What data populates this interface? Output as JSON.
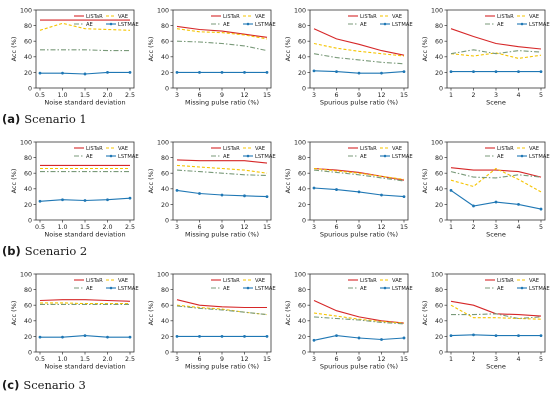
{
  "captions": [
    {
      "letter": "(a)",
      "text": "Scenario 1"
    },
    {
      "letter": "(b)",
      "text": "Scenario 2"
    },
    {
      "letter": "(c)",
      "text": "Scenario 3"
    }
  ],
  "legend_labels": [
    "LiSTaR",
    "VAE",
    "AE",
    "LSTMAE"
  ],
  "series_colors": {
    "LiSTaR": "#d62728",
    "VAE": "#f5c400",
    "AE": "#7a9a7a",
    "LSTMAE": "#1f77b4"
  },
  "chart_data": [
    {
      "type": "line",
      "scenario": "Scenario 1",
      "xlabel": "Noise standard deviation",
      "ylabel": "Acc (%)",
      "x": [
        0.5,
        1.0,
        1.5,
        2.0,
        2.5
      ],
      "xticks": [
        "0.5",
        "1.0",
        "1.5",
        "2.0",
        "2.5"
      ],
      "ylim": [
        0,
        100
      ],
      "yticks": [
        0,
        20,
        40,
        60,
        80,
        100
      ],
      "grid": false,
      "legend_loc": "top-right",
      "series": [
        {
          "name": "LiSTaR",
          "values": [
            87,
            87,
            87,
            87,
            87
          ]
        },
        {
          "name": "VAE",
          "values": [
            74,
            83,
            76,
            75,
            74
          ]
        },
        {
          "name": "AE",
          "values": [
            49,
            49,
            49,
            48,
            48
          ]
        },
        {
          "name": "LSTMAE",
          "values": [
            19,
            19,
            18,
            20,
            20
          ]
        }
      ]
    },
    {
      "type": "line",
      "scenario": "Scenario 1",
      "xlabel": "Missing pulse ratio (%)",
      "ylabel": "Acc (%)",
      "x": [
        3,
        6,
        9,
        12,
        15
      ],
      "xticks": [
        "3",
        "6",
        "9",
        "12",
        "15"
      ],
      "ylim": [
        0,
        100
      ],
      "yticks": [
        0,
        20,
        40,
        60,
        80,
        100
      ],
      "grid": false,
      "legend_loc": "top-right",
      "series": [
        {
          "name": "LiSTaR",
          "values": [
            79,
            75,
            73,
            69,
            65
          ]
        },
        {
          "name": "VAE",
          "values": [
            76,
            72,
            71,
            68,
            63
          ]
        },
        {
          "name": "AE",
          "values": [
            60,
            59,
            57,
            54,
            48
          ]
        },
        {
          "name": "LSTMAE",
          "values": [
            20,
            20,
            20,
            20,
            20
          ]
        }
      ]
    },
    {
      "type": "line",
      "scenario": "Scenario 1",
      "xlabel": "Spurious pulse ratio (%)",
      "ylabel": "Acc (%)",
      "x": [
        3,
        6,
        9,
        12,
        15
      ],
      "xticks": [
        "3",
        "6",
        "9",
        "12",
        "15"
      ],
      "ylim": [
        0,
        100
      ],
      "yticks": [
        0,
        20,
        40,
        60,
        80,
        100
      ],
      "grid": false,
      "legend_loc": "top-right",
      "series": [
        {
          "name": "LiSTaR",
          "values": [
            76,
            63,
            56,
            48,
            42
          ]
        },
        {
          "name": "VAE",
          "values": [
            57,
            51,
            47,
            44,
            41
          ]
        },
        {
          "name": "AE",
          "values": [
            44,
            39,
            36,
            33,
            31
          ]
        },
        {
          "name": "LSTMAE",
          "values": [
            22,
            21,
            19,
            19,
            21
          ]
        }
      ]
    },
    {
      "type": "line",
      "scenario": "Scenario 1",
      "xlabel": "Scene",
      "ylabel": "Acc (%)",
      "x": [
        1,
        2,
        3,
        4,
        5
      ],
      "xticks": [
        "1",
        "2",
        "3",
        "4",
        "5"
      ],
      "ylim": [
        0,
        100
      ],
      "yticks": [
        0,
        20,
        40,
        60,
        80,
        100
      ],
      "grid": false,
      "legend_loc": "top-right",
      "series": [
        {
          "name": "LiSTaR",
          "values": [
            76,
            66,
            57,
            53,
            50
          ]
        },
        {
          "name": "VAE",
          "values": [
            44,
            41,
            45,
            38,
            42
          ]
        },
        {
          "name": "AE",
          "values": [
            44,
            49,
            44,
            48,
            46
          ]
        },
        {
          "name": "LSTMAE",
          "values": [
            21,
            21,
            21,
            21,
            21
          ]
        }
      ]
    },
    {
      "type": "line",
      "scenario": "Scenario 2",
      "xlabel": "Noise standard deviation",
      "ylabel": "Acc (%)",
      "x": [
        0.5,
        1.0,
        1.5,
        2.0,
        2.5
      ],
      "xticks": [
        "0.5",
        "1.0",
        "1.5",
        "2.0",
        "2.5"
      ],
      "ylim": [
        0,
        100
      ],
      "yticks": [
        0,
        20,
        40,
        60,
        80,
        100
      ],
      "grid": false,
      "legend_loc": "top-right",
      "series": [
        {
          "name": "LiSTaR",
          "values": [
            70,
            70,
            70,
            70,
            70
          ]
        },
        {
          "name": "VAE",
          "values": [
            66,
            66,
            66,
            66,
            66
          ]
        },
        {
          "name": "AE",
          "values": [
            62,
            62,
            62,
            62,
            62
          ]
        },
        {
          "name": "LSTMAE",
          "values": [
            24,
            26,
            25,
            26,
            28
          ]
        }
      ]
    },
    {
      "type": "line",
      "scenario": "Scenario 2",
      "xlabel": "Missing pulse ratio (%)",
      "ylabel": "Acc (%)",
      "x": [
        3,
        6,
        9,
        12,
        15
      ],
      "xticks": [
        "3",
        "6",
        "9",
        "12",
        "15"
      ],
      "ylim": [
        0,
        100
      ],
      "yticks": [
        0,
        20,
        40,
        60,
        80,
        100
      ],
      "grid": false,
      "legend_loc": "top-right",
      "series": [
        {
          "name": "LiSTaR",
          "values": [
            77,
            76,
            76,
            76,
            73
          ]
        },
        {
          "name": "VAE",
          "values": [
            70,
            68,
            66,
            64,
            60
          ]
        },
        {
          "name": "AE",
          "values": [
            64,
            62,
            60,
            58,
            57
          ]
        },
        {
          "name": "LSTMAE",
          "values": [
            38,
            34,
            32,
            31,
            30
          ]
        }
      ]
    },
    {
      "type": "line",
      "scenario": "Scenario 2",
      "xlabel": "Spurious pulse ratio (%)",
      "ylabel": "Acc (%)",
      "x": [
        3,
        6,
        9,
        12,
        15
      ],
      "xticks": [
        "3",
        "6",
        "9",
        "12",
        "15"
      ],
      "ylim": [
        0,
        100
      ],
      "yticks": [
        0,
        20,
        40,
        60,
        80,
        100
      ],
      "grid": false,
      "legend_loc": "top-right",
      "series": [
        {
          "name": "LiSTaR",
          "values": [
            66,
            64,
            61,
            56,
            51
          ]
        },
        {
          "name": "VAE",
          "values": [
            66,
            63,
            60,
            56,
            52
          ]
        },
        {
          "name": "AE",
          "values": [
            64,
            61,
            58,
            54,
            50
          ]
        },
        {
          "name": "LSTMAE",
          "values": [
            41,
            39,
            36,
            32,
            30
          ]
        }
      ]
    },
    {
      "type": "line",
      "scenario": "Scenario 2",
      "xlabel": "Scene",
      "ylabel": "Acc (%)",
      "x": [
        1,
        2,
        3,
        4,
        5
      ],
      "xticks": [
        "1",
        "2",
        "3",
        "4",
        "5"
      ],
      "ylim": [
        0,
        100
      ],
      "yticks": [
        0,
        20,
        40,
        60,
        80,
        100
      ],
      "grid": false,
      "legend_loc": "top-right",
      "series": [
        {
          "name": "LiSTaR",
          "values": [
            67,
            64,
            64,
            62,
            55
          ]
        },
        {
          "name": "VAE",
          "values": [
            51,
            43,
            66,
            52,
            36
          ]
        },
        {
          "name": "AE",
          "values": [
            62,
            55,
            54,
            58,
            55
          ]
        },
        {
          "name": "LSTMAE",
          "values": [
            38,
            18,
            23,
            20,
            14
          ]
        }
      ]
    },
    {
      "type": "line",
      "scenario": "Scenario 3",
      "xlabel": "Noise standard deviation",
      "ylabel": "Acc (%)",
      "x": [
        0.5,
        1.0,
        1.5,
        2.0,
        2.5
      ],
      "xticks": [
        "0.5",
        "1.0",
        "1.5",
        "2.0",
        "2.5"
      ],
      "ylim": [
        0,
        100
      ],
      "yticks": [
        0,
        20,
        40,
        60,
        80,
        100
      ],
      "grid": false,
      "legend_loc": "top-right",
      "series": [
        {
          "name": "LiSTaR",
          "values": [
            66,
            67,
            67,
            66,
            65
          ]
        },
        {
          "name": "VAE",
          "values": [
            63,
            63,
            62,
            62,
            62
          ]
        },
        {
          "name": "AE",
          "values": [
            61,
            61,
            61,
            61,
            61
          ]
        },
        {
          "name": "LSTMAE",
          "values": [
            19,
            19,
            21,
            19,
            19
          ]
        }
      ]
    },
    {
      "type": "line",
      "scenario": "Scenario 3",
      "xlabel": "Missing pulse ratio (%)",
      "ylabel": "Acc (%)",
      "x": [
        3,
        6,
        9,
        12,
        15
      ],
      "xticks": [
        "3",
        "6",
        "9",
        "12",
        "15"
      ],
      "ylim": [
        0,
        100
      ],
      "yticks": [
        0,
        20,
        40,
        60,
        80,
        100
      ],
      "grid": false,
      "legend_loc": "top-right",
      "series": [
        {
          "name": "LiSTaR",
          "values": [
            67,
            60,
            58,
            57,
            57
          ]
        },
        {
          "name": "VAE",
          "values": [
            60,
            57,
            55,
            51,
            48
          ]
        },
        {
          "name": "AE",
          "values": [
            59,
            56,
            54,
            51,
            48
          ]
        },
        {
          "name": "LSTMAE",
          "values": [
            20,
            20,
            20,
            20,
            20
          ]
        }
      ]
    },
    {
      "type": "line",
      "scenario": "Scenario 3",
      "xlabel": "Spurious pulse ratio (%)",
      "ylabel": "Acc (%)",
      "x": [
        3,
        6,
        9,
        12,
        15
      ],
      "xticks": [
        "3",
        "6",
        "9",
        "12",
        "15"
      ],
      "ylim": [
        0,
        100
      ],
      "yticks": [
        0,
        20,
        40,
        60,
        80,
        100
      ],
      "grid": false,
      "legend_loc": "top-right",
      "series": [
        {
          "name": "LiSTaR",
          "values": [
            66,
            53,
            45,
            40,
            37
          ]
        },
        {
          "name": "VAE",
          "values": [
            50,
            46,
            42,
            39,
            37
          ]
        },
        {
          "name": "AE",
          "values": [
            45,
            43,
            41,
            38,
            36
          ]
        },
        {
          "name": "LSTMAE",
          "values": [
            15,
            21,
            18,
            16,
            18
          ]
        }
      ]
    },
    {
      "type": "line",
      "scenario": "Scenario 3",
      "xlabel": "Scene",
      "ylabel": "Acc (%)",
      "x": [
        1,
        2,
        3,
        4,
        5
      ],
      "xticks": [
        "1",
        "2",
        "3",
        "4",
        "5"
      ],
      "ylim": [
        0,
        100
      ],
      "yticks": [
        0,
        20,
        40,
        60,
        80,
        100
      ],
      "grid": false,
      "legend_loc": "top-right",
      "series": [
        {
          "name": "LiSTaR",
          "values": [
            65,
            60,
            49,
            48,
            46
          ]
        },
        {
          "name": "VAE",
          "values": [
            60,
            44,
            44,
            43,
            42
          ]
        },
        {
          "name": "AE",
          "values": [
            48,
            48,
            49,
            43,
            45
          ]
        },
        {
          "name": "LSTMAE",
          "values": [
            21,
            22,
            21,
            21,
            21
          ]
        }
      ]
    }
  ]
}
